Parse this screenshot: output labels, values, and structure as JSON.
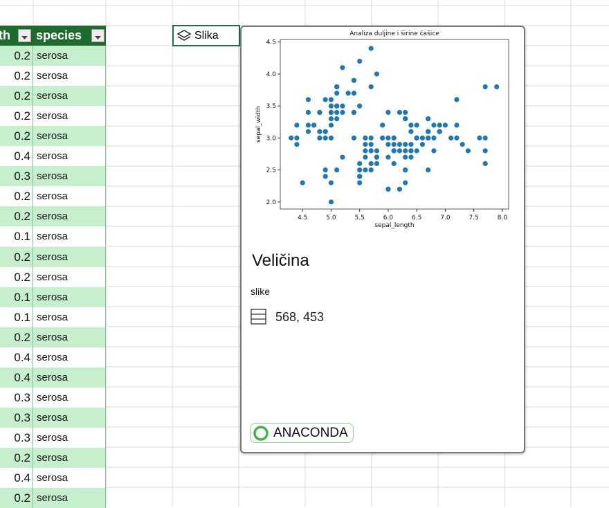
{
  "spreadsheet": {
    "headers": [
      "th",
      "species"
    ],
    "rows": [
      [
        0.2,
        "serosa"
      ],
      [
        0.2,
        "serosa"
      ],
      [
        0.2,
        "serosa"
      ],
      [
        0.2,
        "serosa"
      ],
      [
        0.2,
        "serosa"
      ],
      [
        0.4,
        "serosa"
      ],
      [
        0.3,
        "serosa"
      ],
      [
        0.2,
        "serosa"
      ],
      [
        0.2,
        "serosa"
      ],
      [
        0.1,
        "serosa"
      ],
      [
        0.2,
        "serosa"
      ],
      [
        0.2,
        "serosa"
      ],
      [
        0.1,
        "serosa"
      ],
      [
        0.1,
        "serosa"
      ],
      [
        0.2,
        "serosa"
      ],
      [
        0.4,
        "serosa"
      ],
      [
        0.4,
        "serosa"
      ],
      [
        0.3,
        "serosa"
      ],
      [
        0.3,
        "serosa"
      ],
      [
        0.3,
        "serosa"
      ],
      [
        0.2,
        "serosa"
      ],
      [
        0.4,
        "serosa"
      ],
      [
        0.2,
        "serosa"
      ]
    ]
  },
  "card": {
    "button": "Slika",
    "heading": "Veličina",
    "label": "slike",
    "value": "568, 453",
    "brand": "ANACONDA",
    "chart": {
      "type": "scatter",
      "title": "Analiza duljine i širine čašice",
      "x_label": "sepal_length",
      "y_label": "sepal_width",
      "color": "#1f77b4",
      "xlim": [
        4.11,
        8.11
      ],
      "ylim": [
        1.89,
        4.54
      ],
      "xticks": [
        4.5,
        {
          "value": 5.0,
          "label": "5.0"
        },
        5.5,
        {
          "value": 6.0,
          "label": "6.0"
        },
        6.5,
        {
          "value": 7.0,
          "label": "7.0"
        },
        7.5,
        {
          "value": 8.0,
          "label": "8.0"
        }
      ],
      "yticks": [
        {
          "value": 2.0,
          "label": "2.0"
        },
        2.5,
        {
          "value": 3.0,
          "label": "3.0"
        },
        3.5,
        {
          "value": 4.0,
          "label": "4.0"
        },
        4.5
      ],
      "x": [
        5.1,
        4.9,
        4.7,
        4.6,
        5.0,
        5.4,
        4.6,
        5.0,
        4.4,
        4.9,
        5.4,
        4.8,
        4.8,
        4.3,
        5.8,
        5.7,
        5.4,
        5.1,
        5.7,
        5.1,
        5.4,
        5.1,
        4.6,
        5.1,
        4.8,
        5.0,
        5.0,
        5.2,
        5.2,
        4.7,
        4.8,
        5.4,
        5.2,
        5.5,
        4.9,
        5.0,
        5.5,
        4.9,
        4.4,
        5.1,
        5.0,
        4.5,
        4.4,
        5.0,
        5.1,
        4.8,
        5.1,
        4.6,
        5.3,
        5.0,
        7.0,
        6.4,
        6.9,
        5.5,
        6.5,
        5.7,
        6.3,
        4.9,
        6.6,
        5.2,
        5.0,
        5.9,
        6.0,
        6.1,
        5.6,
        6.7,
        5.6,
        5.8,
        6.2,
        5.6,
        5.9,
        6.1,
        6.3,
        6.1,
        6.4,
        6.6,
        6.8,
        6.7,
        6.0,
        5.7,
        5.5,
        5.5,
        5.8,
        6.0,
        5.4,
        6.0,
        6.7,
        6.3,
        5.6,
        5.5,
        5.5,
        6.1,
        5.8,
        5.0,
        5.6,
        5.7,
        5.7,
        6.2,
        5.1,
        5.7,
        6.3,
        5.8,
        7.1,
        6.3,
        6.5,
        7.6,
        4.9,
        7.3,
        6.7,
        7.2,
        6.5,
        6.4,
        6.8,
        5.7,
        5.8,
        6.4,
        6.5,
        7.7,
        7.7,
        6.0,
        6.9,
        5.6,
        7.7,
        6.3,
        6.7,
        7.2,
        6.2,
        6.1,
        6.4,
        7.2,
        7.4,
        7.9,
        6.4,
        6.3,
        6.1,
        7.7,
        6.3,
        6.4,
        6.0,
        6.9,
        6.7,
        6.9,
        5.8,
        6.8,
        6.7,
        6.7,
        6.3,
        6.5,
        6.2,
        5.9
      ],
      "y": [
        3.5,
        3.0,
        3.2,
        3.1,
        3.6,
        3.9,
        3.4,
        3.4,
        2.9,
        3.1,
        3.7,
        3.4,
        3.0,
        3.0,
        4.0,
        4.4,
        3.9,
        3.5,
        3.8,
        3.8,
        3.4,
        3.7,
        3.6,
        3.3,
        3.4,
        3.0,
        3.4,
        3.5,
        3.4,
        3.2,
        3.1,
        3.4,
        4.1,
        4.2,
        3.1,
        3.2,
        3.5,
        3.6,
        3.0,
        3.4,
        3.5,
        2.3,
        3.2,
        3.5,
        3.8,
        3.0,
        3.8,
        3.2,
        3.7,
        3.3,
        3.2,
        3.2,
        3.1,
        2.3,
        2.8,
        2.8,
        3.3,
        2.4,
        2.9,
        2.7,
        2.0,
        3.0,
        2.2,
        2.9,
        2.9,
        3.1,
        3.0,
        2.7,
        2.2,
        2.5,
        3.2,
        2.8,
        2.5,
        2.8,
        2.9,
        3.0,
        2.8,
        3.0,
        2.9,
        2.6,
        2.4,
        2.4,
        2.7,
        2.7,
        3.0,
        3.4,
        3.1,
        2.3,
        3.0,
        2.5,
        2.6,
        3.0,
        2.6,
        2.3,
        2.7,
        3.0,
        2.9,
        2.9,
        2.5,
        2.8,
        3.3,
        2.7,
        3.0,
        2.9,
        3.0,
        3.0,
        2.5,
        2.9,
        2.5,
        3.6,
        3.2,
        2.7,
        3.0,
        2.5,
        2.8,
        3.2,
        3.0,
        3.8,
        2.6,
        2.2,
        3.2,
        2.8,
        2.8,
        2.7,
        3.3,
        3.2,
        2.8,
        3.0,
        2.8,
        3.0,
        2.8,
        3.8,
        2.8,
        2.8,
        2.6,
        3.0,
        3.4,
        3.1,
        3.0,
        3.1,
        3.1,
        3.1,
        2.7,
        3.2,
        3.3,
        3.0,
        2.5,
        3.0,
        3.4,
        3.0
      ]
    }
  }
}
